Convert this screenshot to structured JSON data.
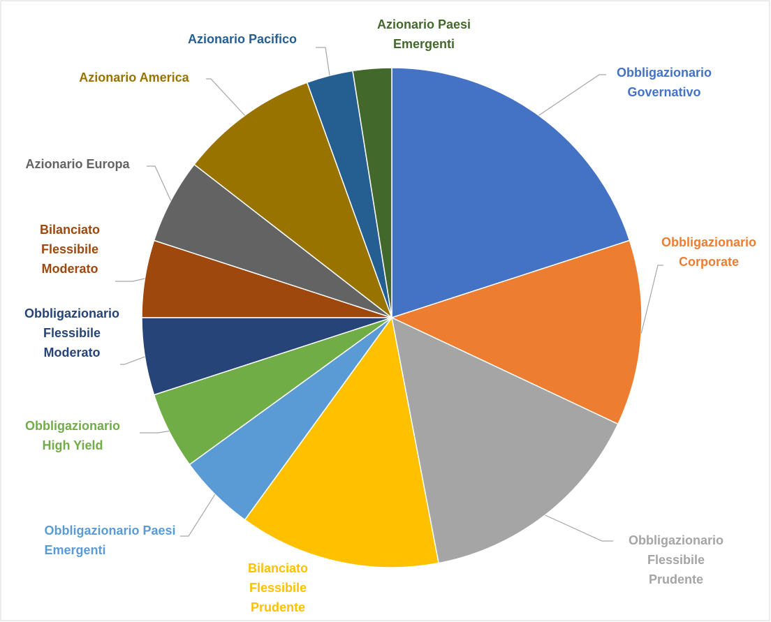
{
  "chart_data": {
    "type": "pie",
    "categories": [
      "Obbligazionario Governativo",
      "Obbligazionario Corporate",
      "Obbligazionario Flessibile Prudente",
      "Bilanciato Flessibile Prudente",
      "Obbligazionario Paesi Emergenti",
      "Obbligazionario High Yield",
      "Obbligazionario Flessibile Moderato",
      "Bilanciato Flessibile Moderato",
      "Azionario Europa",
      "Azionario America",
      "Azionario Pacifico",
      "Azionario Paesi Emergenti"
    ],
    "values": [
      20,
      12,
      15,
      13,
      5,
      5,
      5,
      5,
      5.5,
      9,
      3,
      2.5
    ],
    "colors": [
      "#4472c4",
      "#ed7d31",
      "#a5a5a5",
      "#ffc000",
      "#5b9bd5",
      "#70ad47",
      "#264478",
      "#9e480e",
      "#636363",
      "#997300",
      "#255e91",
      "#43682b"
    ]
  }
}
